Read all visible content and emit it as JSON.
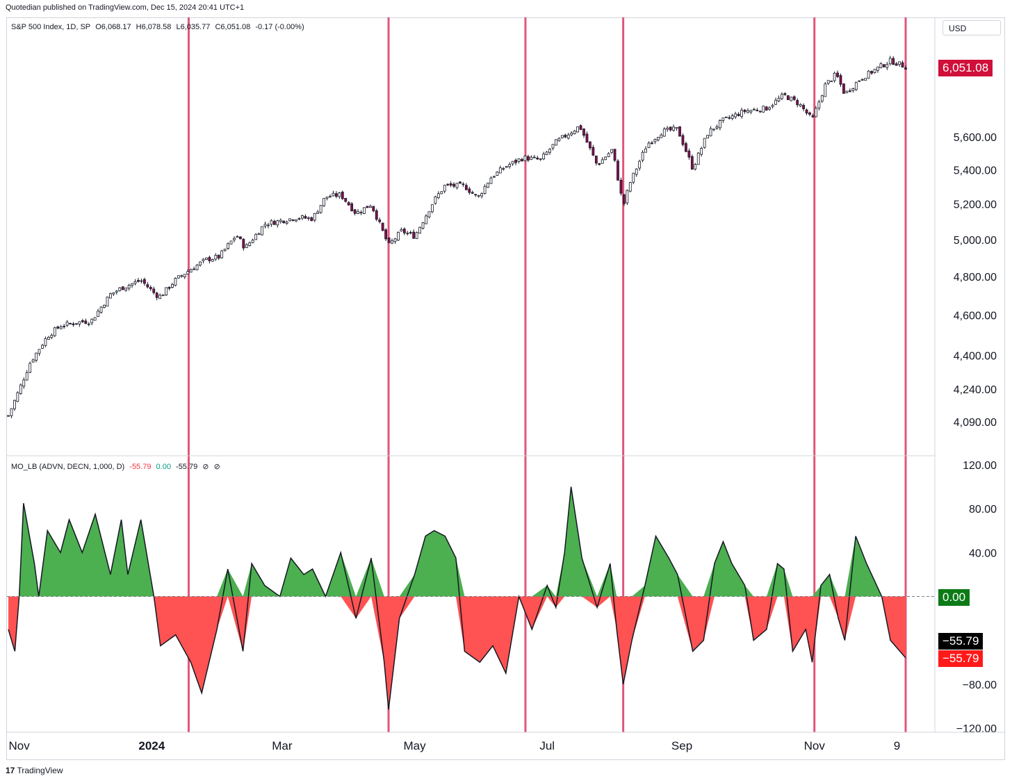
{
  "header": {
    "published": "Quotedian published on TradingView.com, Dec 15, 2024 20:41 UTC+1"
  },
  "main_legend": {
    "symbol": "S&P 500 Index, 1D, SP",
    "open": "O6,068.17",
    "high": "H6,078.58",
    "low": "L6,035.77",
    "close": "C6,051.08",
    "change": "-0.17 (-0.00%)"
  },
  "currency_label": "USD",
  "price_tag": {
    "value": "6,051.08",
    "color": "#d0103a"
  },
  "indicator_legend": {
    "name": "MO_LB (ADVN, DECN, 1,000, D)",
    "v1": "-55.79",
    "v2": "0.00",
    "v3": "-55.79",
    "icons": [
      "circle-icon",
      "circle-icon"
    ]
  },
  "indicator_tags": {
    "zero": "0.00",
    "value_black": "−55.79",
    "value_red": "−55.79",
    "zero_color": "#0c7a16",
    "black_color": "#000000",
    "red_color": "#ff1a1a"
  },
  "footer": {
    "brand": "TradingView",
    "logo": "tradingview-logo-icon"
  },
  "colors": {
    "up_fill": "#4caf50",
    "down_fill": "#ff5252",
    "vline": "#e0567a",
    "candle_up": "#ffffff",
    "candle_down": "#880e4f"
  },
  "chart_data": [
    {
      "type": "candlestick",
      "title": "S&P 500 Index, 1D, SP",
      "scale": "log",
      "y_ticks": [
        "4,090.00",
        "4,240.00",
        "4,400.00",
        "4,600.00",
        "4,800.00",
        "5,000.00",
        "5,200.00",
        "5,400.00",
        "5,600.00"
      ],
      "y_tick_values": [
        4090,
        4240,
        4400,
        4600,
        4800,
        5000,
        5200,
        5400,
        5600
      ],
      "x_ticks": [
        "Nov",
        "2024",
        "Mar",
        "May",
        "Jul",
        "Sep",
        "Nov",
        "9"
      ],
      "x_tick_dates": [
        "2023-11-01",
        "2024-01-01",
        "2024-03-01",
        "2024-05-01",
        "2024-07-01",
        "2024-09-01",
        "2024-11-01",
        "2024-12-09"
      ],
      "close_path": [
        [
          "2023-10-27",
          4117
        ],
        [
          "2023-11-01",
          4237
        ],
        [
          "2023-11-06",
          4365
        ],
        [
          "2023-11-14",
          4495
        ],
        [
          "2023-11-20",
          4547
        ],
        [
          "2023-11-30",
          4568
        ],
        [
          "2023-12-04",
          4569
        ],
        [
          "2023-12-13",
          4707
        ],
        [
          "2023-12-18",
          4740
        ],
        [
          "2023-12-27",
          4781
        ],
        [
          "2024-01-03",
          4704
        ],
        [
          "2024-01-05",
          4697
        ],
        [
          "2024-01-12",
          4783
        ],
        [
          "2024-01-19",
          4840
        ],
        [
          "2024-01-26",
          4891
        ],
        [
          "2024-02-01",
          4906
        ],
        [
          "2024-02-09",
          5026
        ],
        [
          "2024-02-13",
          4953
        ],
        [
          "2024-02-22",
          5087
        ],
        [
          "2024-03-08",
          5124
        ],
        [
          "2024-03-15",
          5117
        ],
        [
          "2024-03-21",
          5241
        ],
        [
          "2024-03-28",
          5254
        ],
        [
          "2024-04-04",
          5147
        ],
        [
          "2024-04-11",
          5199
        ],
        [
          "2024-04-19",
          4967
        ],
        [
          "2024-04-25",
          5048
        ],
        [
          "2024-05-01",
          5018
        ],
        [
          "2024-05-10",
          5222
        ],
        [
          "2024-05-15",
          5308
        ],
        [
          "2024-05-24",
          5304
        ],
        [
          "2024-05-30",
          5235
        ],
        [
          "2024-06-05",
          5354
        ],
        [
          "2024-06-12",
          5421
        ],
        [
          "2024-06-20",
          5473
        ],
        [
          "2024-06-28",
          5460
        ],
        [
          "2024-07-05",
          5567
        ],
        [
          "2024-07-16",
          5667
        ],
        [
          "2024-07-24",
          5427
        ],
        [
          "2024-07-31",
          5522
        ],
        [
          "2024-08-05",
          5186
        ],
        [
          "2024-08-08",
          5319
        ],
        [
          "2024-08-16",
          5554
        ],
        [
          "2024-08-23",
          5634
        ],
        [
          "2024-08-30",
          5648
        ],
        [
          "2024-09-06",
          5408
        ],
        [
          "2024-09-13",
          5626
        ],
        [
          "2024-09-20",
          5702
        ],
        [
          "2024-09-30",
          5762
        ],
        [
          "2024-10-10",
          5780
        ],
        [
          "2024-10-18",
          5864
        ],
        [
          "2024-10-25",
          5808
        ],
        [
          "2024-10-31",
          5705
        ],
        [
          "2024-11-06",
          5929
        ],
        [
          "2024-11-11",
          6001
        ],
        [
          "2024-11-15",
          5870
        ],
        [
          "2024-11-22",
          5969
        ],
        [
          "2024-11-29",
          6032
        ],
        [
          "2024-12-06",
          6090
        ],
        [
          "2024-12-13",
          6051
        ]
      ],
      "last_close": 6051.08
    },
    {
      "type": "area",
      "title": "MO_LB (ADVN, DECN, 1,000, D)",
      "y_ticks": [
        "120.00",
        "80.00",
        "40.00",
        "−80.00",
        "−120.00"
      ],
      "y_tick_values": [
        120,
        80,
        40,
        -80,
        -120
      ],
      "baseline": 0,
      "series": [
        {
          "values": [
            [
              "2023-10-27",
              -30
            ],
            [
              "2023-10-30",
              -50
            ],
            [
              "2023-11-01",
              0
            ],
            [
              "2023-11-03",
              85
            ],
            [
              "2023-11-08",
              30
            ],
            [
              "2023-11-10",
              0
            ],
            [
              "2023-11-14",
              60
            ],
            [
              "2023-11-20",
              40
            ],
            [
              "2023-11-24",
              70
            ],
            [
              "2023-11-30",
              40
            ],
            [
              "2023-12-06",
              75
            ],
            [
              "2023-12-13",
              20
            ],
            [
              "2023-12-18",
              70
            ],
            [
              "2023-12-21",
              20
            ],
            [
              "2023-12-27",
              70
            ],
            [
              "2024-01-02",
              0
            ],
            [
              "2024-01-05",
              -45
            ],
            [
              "2024-01-12",
              -35
            ],
            [
              "2024-01-19",
              -60
            ],
            [
              "2024-01-24",
              -88
            ],
            [
              "2024-01-31",
              -30
            ],
            [
              "2024-02-05",
              25
            ],
            [
              "2024-02-12",
              -50
            ],
            [
              "2024-02-16",
              30
            ],
            [
              "2024-02-22",
              10
            ],
            [
              "2024-02-29",
              0
            ],
            [
              "2024-03-05",
              35
            ],
            [
              "2024-03-11",
              20
            ],
            [
              "2024-03-15",
              25
            ],
            [
              "2024-03-21",
              0
            ],
            [
              "2024-03-28",
              40
            ],
            [
              "2024-04-04",
              -20
            ],
            [
              "2024-04-11",
              35
            ],
            [
              "2024-04-17",
              -60
            ],
            [
              "2024-04-19",
              -103
            ],
            [
              "2024-04-24",
              -20
            ],
            [
              "2024-05-01",
              20
            ],
            [
              "2024-05-06",
              55
            ],
            [
              "2024-05-10",
              60
            ],
            [
              "2024-05-15",
              55
            ],
            [
              "2024-05-20",
              35
            ],
            [
              "2024-05-24",
              -50
            ],
            [
              "2024-05-31",
              -60
            ],
            [
              "2024-06-06",
              -45
            ],
            [
              "2024-06-12",
              -70
            ],
            [
              "2024-06-18",
              0
            ],
            [
              "2024-06-24",
              -30
            ],
            [
              "2024-07-01",
              10
            ],
            [
              "2024-07-05",
              -10
            ],
            [
              "2024-07-09",
              40
            ],
            [
              "2024-07-12",
              100
            ],
            [
              "2024-07-17",
              35
            ],
            [
              "2024-07-24",
              -10
            ],
            [
              "2024-07-30",
              30
            ],
            [
              "2024-08-02",
              -30
            ],
            [
              "2024-08-05",
              -80
            ],
            [
              "2024-08-09",
              -40
            ],
            [
              "2024-08-15",
              10
            ],
            [
              "2024-08-20",
              55
            ],
            [
              "2024-08-26",
              35
            ],
            [
              "2024-08-30",
              20
            ],
            [
              "2024-09-06",
              -50
            ],
            [
              "2024-09-11",
              -40
            ],
            [
              "2024-09-16",
              30
            ],
            [
              "2024-09-20",
              50
            ],
            [
              "2024-09-24",
              30
            ],
            [
              "2024-09-30",
              10
            ],
            [
              "2024-10-04",
              -40
            ],
            [
              "2024-10-10",
              -30
            ],
            [
              "2024-10-15",
              30
            ],
            [
              "2024-10-18",
              25
            ],
            [
              "2024-10-22",
              -50
            ],
            [
              "2024-10-28",
              -30
            ],
            [
              "2024-10-31",
              -60
            ],
            [
              "2024-11-04",
              10
            ],
            [
              "2024-11-08",
              20
            ],
            [
              "2024-11-12",
              -20
            ],
            [
              "2024-11-15",
              -40
            ],
            [
              "2024-11-20",
              55
            ],
            [
              "2024-11-25",
              30
            ],
            [
              "2024-12-02",
              0
            ],
            [
              "2024-12-06",
              -40
            ],
            [
              "2024-12-13",
              -56
            ]
          ]
        }
      ]
    }
  ],
  "marker_dates": [
    "2024-01-18",
    "2024-04-19",
    "2024-06-21",
    "2024-08-05",
    "2024-11-01",
    "2024-12-13"
  ]
}
